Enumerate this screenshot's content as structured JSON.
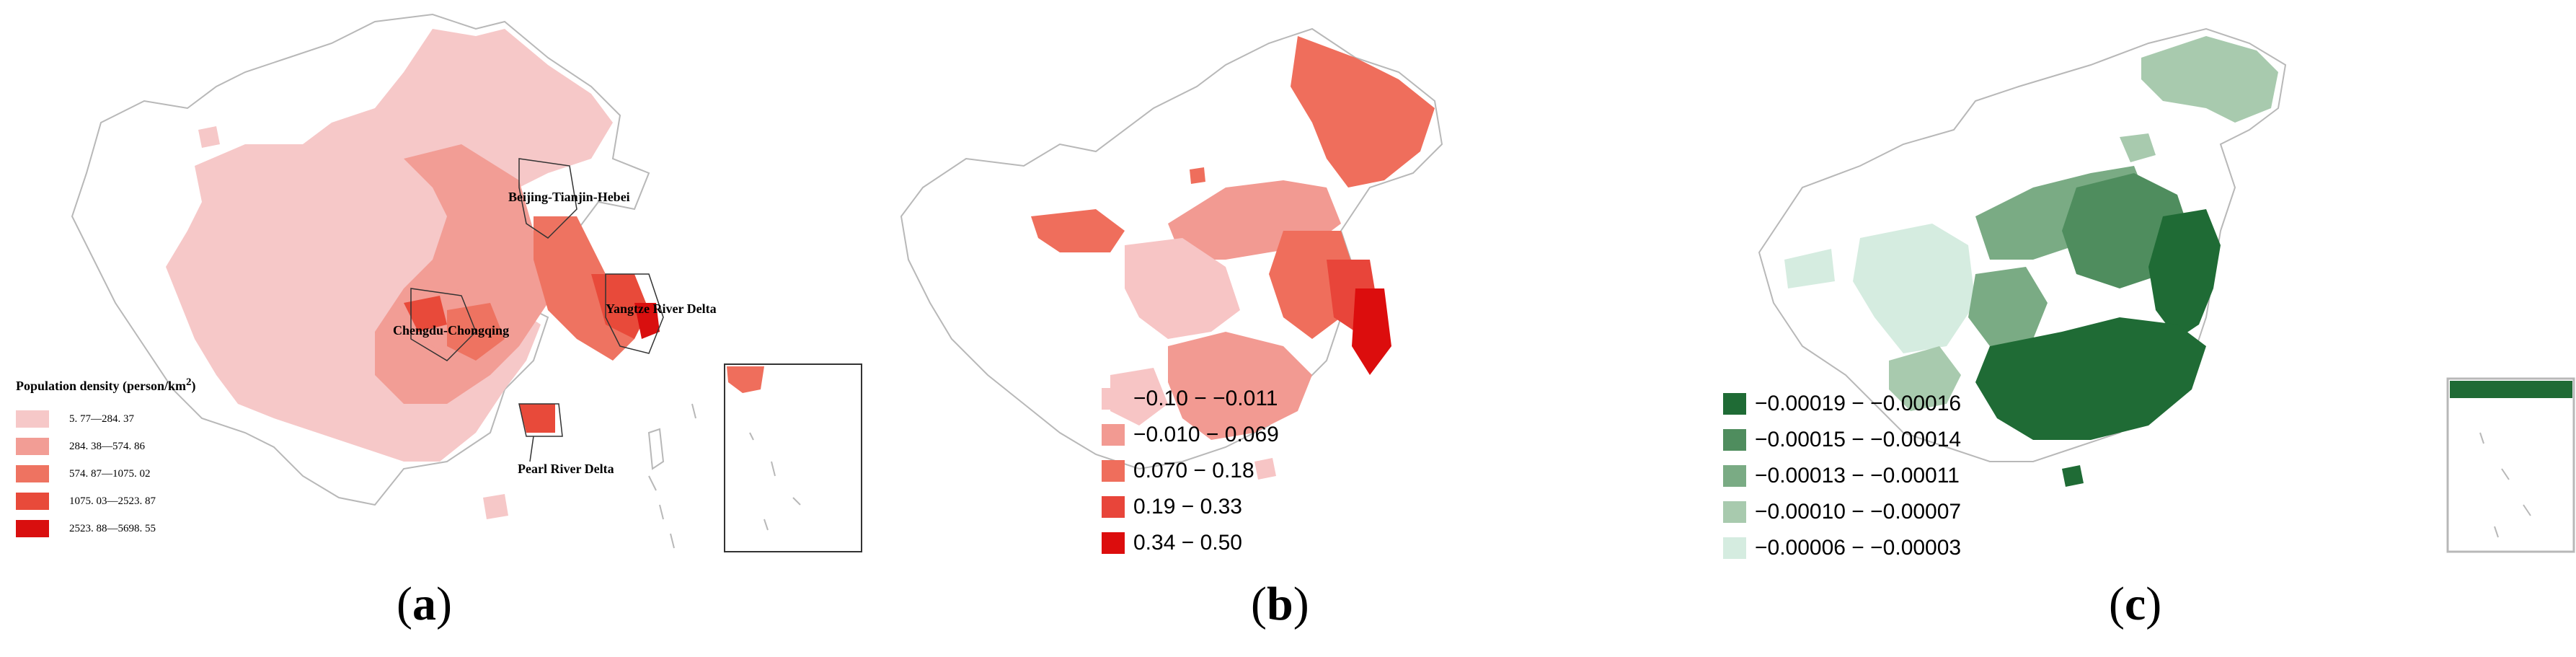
{
  "panels": {
    "a": {
      "caption_open": "(",
      "caption_letter": "a",
      "caption_close": ")",
      "legend_title_main": "Population density (person/km",
      "legend_title_sup": "2",
      "legend_title_end": ")",
      "legend": [
        {
          "label": "5. 77—284. 37",
          "color": "#f6c8c8"
        },
        {
          "label": "284. 38—574. 86",
          "color": "#f29d95"
        },
        {
          "label": "574. 87—1075. 02",
          "color": "#ee7361"
        },
        {
          "label": "1075. 03—2523. 87",
          "color": "#e84a3a"
        },
        {
          "label": "2523. 88—5698. 55",
          "color": "#d90f0f"
        }
      ],
      "regions": {
        "bth": "Beijing-Tianjin-Hebei",
        "yrd": "Yangtze River Delta",
        "cc": "Chengdu-Chongqing",
        "prd": "Pearl River Delta"
      }
    },
    "b": {
      "caption_open": "(",
      "caption_letter": "b",
      "caption_close": ")",
      "legend": [
        {
          "label": "−0.10 − −0.011",
          "color": "#f7c5c5"
        },
        {
          "label": "−0.010 − 0.069",
          "color": "#f29a92"
        },
        {
          "label": "0.070 − 0.18",
          "color": "#ef6e5c"
        },
        {
          "label": "0.19 − 0.33",
          "color": "#e8453a"
        },
        {
          "label": "0.34 − 0.50",
          "color": "#dc0d0d"
        }
      ]
    },
    "c": {
      "caption_open": "(",
      "caption_letter": "c",
      "caption_close": ")",
      "legend": [
        {
          "label": "−0.00019 − −0.00016",
          "color": "#1f6b35"
        },
        {
          "label": "−0.00015 − −0.00014",
          "color": "#4f8d5e"
        },
        {
          "label": "−0.00013 − −0.00011",
          "color": "#7aab84"
        },
        {
          "label": "−0.00010 − −0.00007",
          "color": "#a8caae"
        },
        {
          "label": "−0.00006 − −0.00003",
          "color": "#d5ece0"
        }
      ]
    }
  }
}
